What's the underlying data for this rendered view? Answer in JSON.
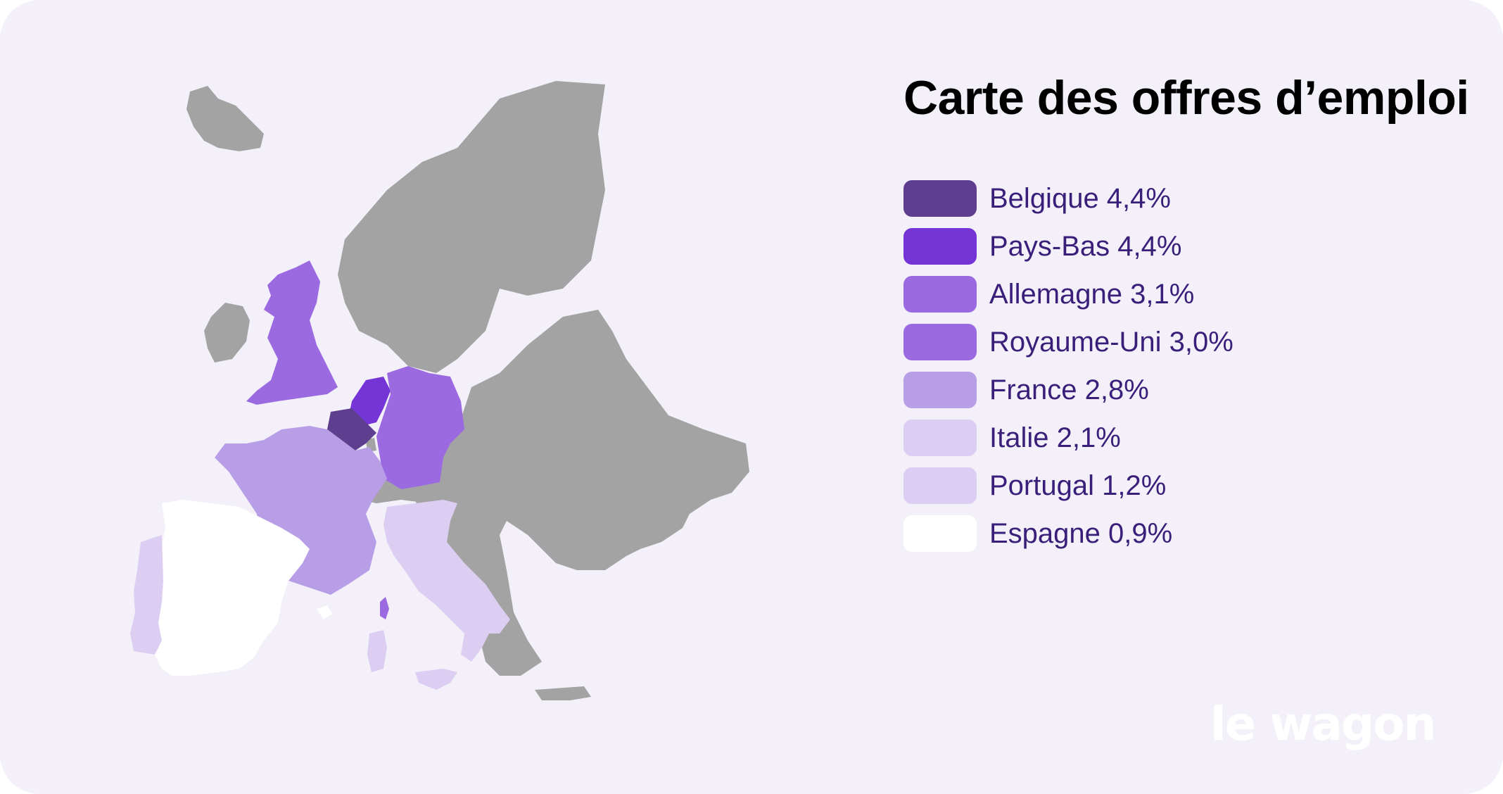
{
  "title": "Carte des offres d’emploi",
  "legend": [
    {
      "country": "Belgique",
      "value": "4,4%",
      "label": "Belgique 4,4%",
      "color": "#5e3f8f"
    },
    {
      "country": "Pays-Bas",
      "value": "4,4%",
      "label": "Pays-Bas 4,4%",
      "color": "#7535d6"
    },
    {
      "country": "Allemagne",
      "value": "3,1%",
      "label": "Allemagne 3,1%",
      "color": "#9b6ae0"
    },
    {
      "country": "Royaume-Uni",
      "value": "3,0%",
      "label": "Royaume-Uni 3,0%",
      "color": "#9b6ae0"
    },
    {
      "country": "France",
      "value": "2,8%",
      "label": "France 2,8%",
      "color": "#b89ee6"
    },
    {
      "country": "Italie",
      "value": "2,1%",
      "label": "Italie 2,1%",
      "color": "#dccef2"
    },
    {
      "country": "Portugal",
      "value": "1,2%",
      "label": "Portugal 1,2%",
      "color": "#dccef2"
    },
    {
      "country": "Espagne",
      "value": "0,9%",
      "label": "Espagne 0,9%",
      "color": "#ffffff"
    }
  ],
  "colors": {
    "background": "#f3f0f9",
    "other_countries": "#a3a3a3",
    "text": "#3a1f7a"
  },
  "logo": "le wagon"
}
